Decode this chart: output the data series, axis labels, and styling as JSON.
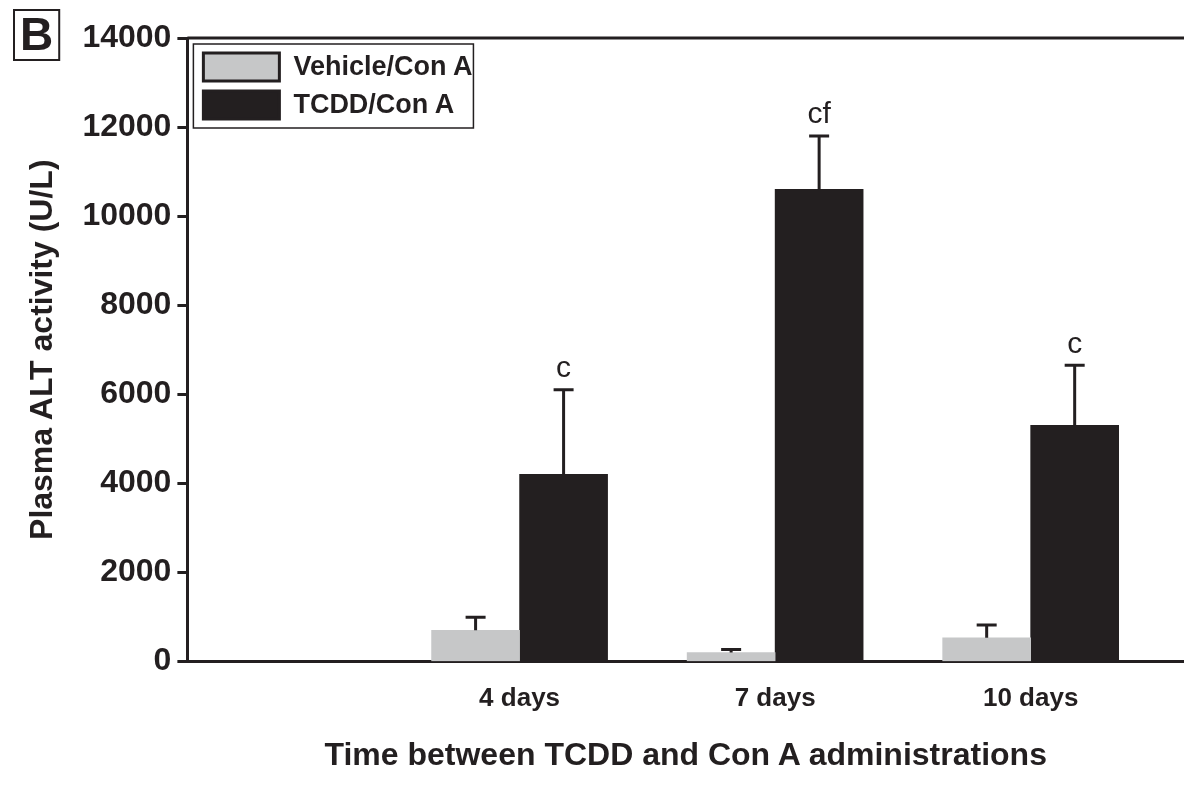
{
  "chart_data": {
    "type": "bar",
    "xlabel": "Time between TCDD and Con A administrations",
    "ylabel": "Plasma ALT activity (U/L)",
    "categories": [
      "4 days",
      "7 days",
      "10 days"
    ],
    "series": [
      {
        "name": "Vehicle/Con A",
        "color": "#c6c7c8",
        "values": [
          700,
          200,
          530
        ],
        "errors": [
          [
            700,
            990
          ],
          [
            200,
            270
          ],
          [
            530,
            820
          ]
        ]
      },
      {
        "name": "TCDD/Con A",
        "color": "#231f20",
        "values": [
          4200,
          10600,
          5300
        ],
        "errors": [
          [
            4200,
            6100
          ],
          [
            10600,
            11800
          ],
          [
            5300,
            6650
          ]
        ]
      }
    ],
    "ylim": [
      0,
      14000
    ],
    "yticks": [
      0,
      2000,
      4000,
      6000,
      8000,
      10000,
      12000,
      14000
    ],
    "grid": false,
    "legend": "top left",
    "annotations": [
      "B",
      "c",
      "cf",
      "c"
    ]
  }
}
